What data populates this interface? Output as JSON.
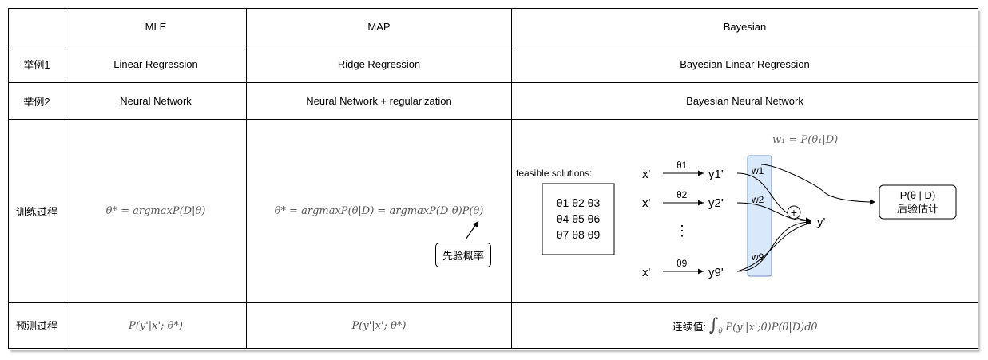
{
  "headers": [
    "",
    "MLE",
    "MAP",
    "Bayesian"
  ],
  "rows": [
    {
      "label": "举例1",
      "mle": "Linear Regression",
      "map": "Ridge Regression",
      "bayes": "Bayesian Linear Regression"
    },
    {
      "label": "举例2",
      "mle": "Neural Network",
      "map": "Neural Network + regularization",
      "bayes": "Bayesian Neural Network"
    }
  ],
  "training": {
    "label": "训练过程",
    "mle_formula": "θ* = argmaxP(D|θ)",
    "map_formula": "θ* = argmaxP(θ|D) = argmaxP(D|θ)P(θ)",
    "prior_note": "先验概率",
    "bayes": {
      "weight_formula": "w₁ = P(θ₁|D)",
      "feasible_label": "feasible solutions:",
      "theta_grid": [
        "θ1 θ2 θ3",
        "θ4 θ5 θ6",
        "θ7 θ8 θ9"
      ],
      "inputs": [
        "x'",
        "x'",
        "x'"
      ],
      "thetas": [
        "θ1",
        "θ2",
        "θ9"
      ],
      "outputs": [
        "y1'",
        "y2'",
        "y9'"
      ],
      "weights": [
        "w1",
        "w2",
        "w9"
      ],
      "vdots": "⋮",
      "plus": "+",
      "final_output": "y'",
      "posterior_line1": "P(θ | D)",
      "posterior_line2": "后验估计",
      "colors": {
        "weight_band_fill": "#dae8fc",
        "weight_band_stroke": "#6c8ebf"
      }
    }
  },
  "prediction": {
    "label": "预测过程",
    "mle": "P(y'|x'; θ*)",
    "map": "P(y'|x'; θ*)",
    "bayes_prefix": "连续值:",
    "bayes_integral": "∫",
    "bayes_subscript": "θ",
    "bayes_formula": "P(y'|x';θ)P(θ|D)dθ"
  }
}
